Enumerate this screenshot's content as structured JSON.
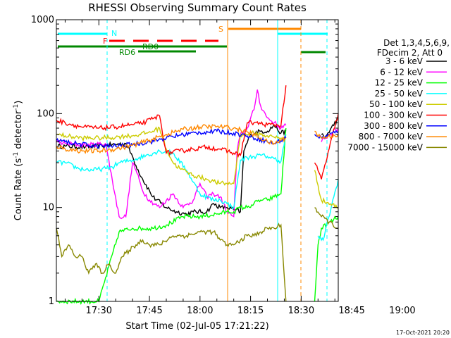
{
  "chart_data": {
    "type": "line",
    "title": "RHESSI Observing Summary Count Rates",
    "xlabel": "Start Time (02-Jul-05 17:21:22)",
    "ylabel_main": "Count Rate (s",
    "ylabel_sup1": "-1",
    "ylabel_mid": " detector",
    "ylabel_sup2": "-1",
    "ylabel_end": ")",
    "y_scale": "log",
    "ylim": [
      1,
      1000
    ],
    "y_ticks": [
      {
        "value": 1,
        "label": "1"
      },
      {
        "value": 10,
        "label": "10"
      },
      {
        "value": 100,
        "label": "100"
      },
      {
        "value": 1000,
        "label": "1000"
      }
    ],
    "xlim_minutes": [
      17.4,
      101
    ],
    "x_ticks": [
      {
        "minute": 30,
        "label": "17:30"
      },
      {
        "minute": 45,
        "label": "17:45"
      },
      {
        "minute": 60,
        "label": "18:00"
      },
      {
        "minute": 75,
        "label": "18:15"
      },
      {
        "minute": 90,
        "label": "18:30"
      },
      {
        "minute": 105,
        "label": "18:45"
      },
      {
        "minute": 120,
        "label": "19:00"
      }
    ],
    "legend": {
      "placement": "right",
      "header1": "Det 1,3,4,5,6,9,",
      "header2": "FDecim 2, Att 0"
    },
    "series": [
      {
        "name": "3 - 6 keV",
        "color": "#000000",
        "x": [
          17.4,
          20,
          26,
          32,
          38,
          40,
          41,
          43,
          46,
          50,
          53,
          56,
          58,
          62,
          64,
          66,
          68,
          70,
          72,
          73,
          75,
          78,
          80,
          82,
          84,
          85.5,
          92,
          96,
          97,
          101
        ],
        "y": [
          45,
          45,
          44,
          46,
          48,
          35,
          28,
          20,
          13,
          10,
          9,
          8.5,
          9,
          9,
          11,
          10,
          10,
          9.5,
          9,
          40,
          60,
          65,
          65,
          75,
          62,
          65,
          null,
          60,
          55,
          90
        ]
      },
      {
        "name": "6 - 12 keV",
        "color": "#ff00ff",
        "x": [
          17.4,
          20,
          26,
          32,
          36,
          38,
          40,
          41,
          43,
          45,
          48,
          52,
          55,
          58,
          60,
          62,
          64,
          66,
          68,
          70,
          71,
          72,
          74,
          76,
          77,
          78,
          80,
          82,
          84,
          85.5,
          92,
          96,
          97,
          101
        ],
        "y": [
          50,
          48,
          46,
          48,
          8,
          8,
          30,
          25,
          15,
          12,
          10,
          14,
          10,
          12,
          18,
          13,
          14,
          13,
          9,
          8,
          40,
          60,
          70,
          110,
          180,
          120,
          90,
          80,
          70,
          75,
          null,
          50,
          55,
          70
        ]
      },
      {
        "name": "12 - 25 keV",
        "color": "#00ff00",
        "x": [
          17.4,
          20,
          26,
          30,
          36,
          40,
          46,
          50,
          55,
          60,
          65,
          68,
          70,
          72,
          74,
          76,
          78,
          80,
          82,
          84,
          85.5,
          92,
          94,
          95,
          96,
          101
        ],
        "y": [
          1,
          1,
          1,
          1,
          5.5,
          6,
          6,
          6.5,
          8,
          8,
          8.5,
          9,
          9,
          10,
          10,
          11,
          12,
          12,
          13,
          14,
          70,
          null,
          1,
          4,
          6,
          8
        ]
      },
      {
        "name": "25 - 50 keV",
        "color": "#00ffff",
        "x": [
          17.4,
          20,
          24,
          28,
          32,
          34,
          36,
          40,
          44,
          48,
          52,
          56,
          60,
          64,
          66,
          68,
          70,
          72,
          74,
          76,
          78,
          80,
          82,
          84,
          85.5,
          92,
          95,
          96,
          96.5,
          101
        ],
        "y": [
          30,
          30,
          26,
          25,
          26,
          27,
          30,
          32,
          36,
          40,
          38,
          25,
          14,
          12,
          12,
          11,
          10,
          32,
          34,
          35,
          36,
          35,
          33,
          31,
          60,
          null,
          5,
          4.5,
          4.5,
          20
        ]
      },
      {
        "name": "50 - 100 keV",
        "color": "#cccc00",
        "x": [
          17.4,
          20,
          25,
          30,
          35,
          38,
          40,
          42,
          44,
          46,
          48,
          50,
          52,
          54,
          56,
          58,
          60,
          62,
          64,
          66,
          68,
          70,
          72,
          74,
          76,
          78,
          80,
          82,
          84,
          85.5,
          92,
          94,
          96,
          101
        ],
        "y": [
          60,
          58,
          55,
          55,
          56,
          58,
          58,
          60,
          62,
          65,
          70,
          42,
          30,
          26,
          24,
          22,
          21,
          20,
          19,
          18,
          18,
          18,
          60,
          60,
          62,
          60,
          58,
          56,
          55,
          55,
          null,
          25,
          12,
          10
        ]
      },
      {
        "name": "100 - 300 keV",
        "color": "#ff0000",
        "x": [
          17.4,
          20,
          25,
          30,
          35,
          38,
          40,
          42,
          44,
          46,
          48,
          50,
          54,
          58,
          62,
          66,
          70,
          72,
          74,
          76,
          78,
          80,
          82,
          84,
          85.5,
          92,
          94,
          96,
          101
        ],
        "y": [
          85,
          80,
          72,
          70,
          72,
          75,
          76,
          78,
          82,
          88,
          95,
          38,
          40,
          42,
          44,
          42,
          38,
          36,
          80,
          80,
          78,
          76,
          76,
          75,
          200,
          null,
          30,
          20,
          100
        ]
      },
      {
        "name": "300 - 800 keV",
        "color": "#0000ff",
        "x": [
          17.4,
          20,
          25,
          30,
          35,
          40,
          45,
          50,
          55,
          60,
          65,
          70,
          74,
          78,
          80,
          82,
          84,
          85.5,
          92,
          94,
          96,
          101
        ],
        "y": [
          52,
          50,
          47,
          45,
          45,
          47,
          50,
          55,
          60,
          63,
          65,
          62,
          58,
          53,
          50,
          48,
          52,
          55,
          null,
          60,
          55,
          65
        ]
      },
      {
        "name": "800 - 7000 keV",
        "color": "#ff8800",
        "x": [
          17.4,
          20,
          25,
          30,
          35,
          40,
          45,
          50,
          55,
          60,
          65,
          70,
          74,
          78,
          80,
          82,
          84,
          85.5,
          92,
          94,
          96,
          101
        ],
        "y": [
          45,
          42,
          40,
          40,
          42,
          46,
          52,
          60,
          68,
          72,
          73,
          70,
          64,
          55,
          50,
          48,
          52,
          55,
          null,
          65,
          55,
          60
        ]
      },
      {
        "name": "7000 - 15000 keV",
        "color": "#888800",
        "x": [
          17.4,
          19,
          21,
          23,
          25,
          27,
          29,
          31,
          33,
          35,
          37,
          39,
          41,
          43,
          45,
          48,
          52,
          56,
          60,
          64,
          66,
          68,
          70,
          72,
          74,
          76,
          78,
          80,
          82,
          84,
          85.5,
          92,
          94,
          96,
          101
        ],
        "y": [
          6,
          3,
          4,
          3,
          3,
          2,
          2.5,
          2,
          2.5,
          2,
          3,
          3.5,
          4,
          4.5,
          4,
          4,
          5,
          5,
          5.5,
          5.5,
          4.5,
          4,
          4,
          4.5,
          5,
          5,
          5.5,
          6,
          6,
          6.5,
          1,
          null,
          10,
          8,
          6
        ]
      }
    ],
    "annotations": [
      {
        "label": "N",
        "color": "#00ffff",
        "minute": 40
      },
      {
        "label": "F",
        "color": "#ff0000",
        "minute": 41
      },
      {
        "label": "RD0",
        "color": "#008800",
        "minute": 51
      },
      {
        "label": "RD6",
        "color": "#008800",
        "minute": 46
      },
      {
        "label": "S",
        "color": "#ff8800",
        "minute": 85.5
      }
    ],
    "timestamp": "17-Oct-2021 20:20"
  }
}
